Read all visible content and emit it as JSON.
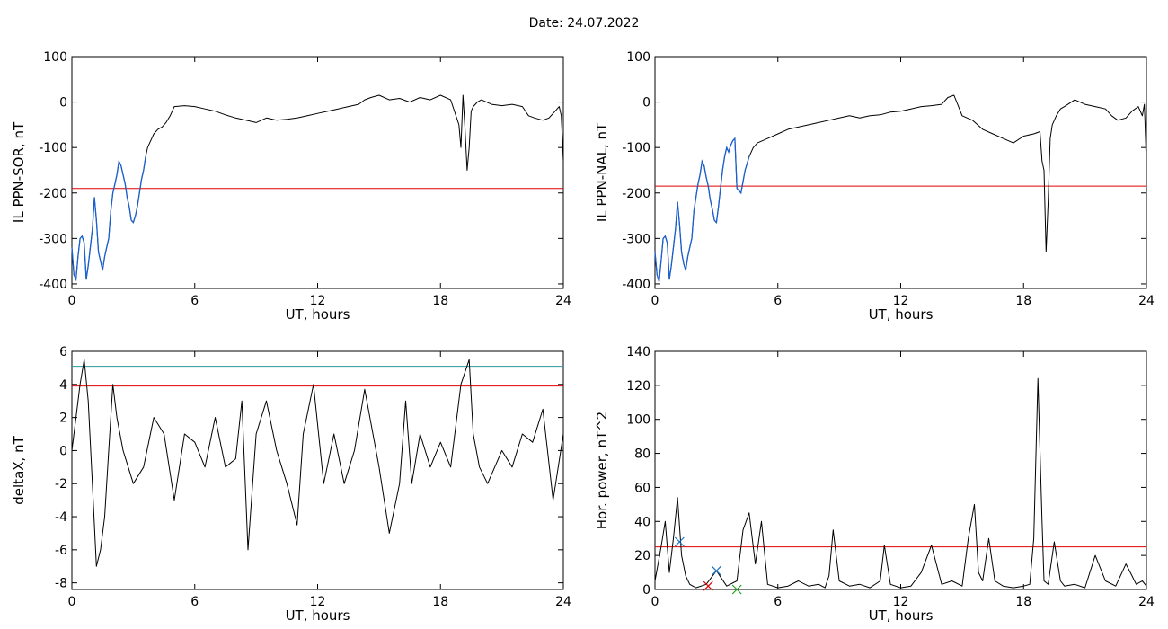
{
  "figure": {
    "title": "Date:  24.07.2022"
  },
  "colors": {
    "trace": "#000000",
    "threshold_red": "#e00000",
    "threshold_teal": "#2a9a9a",
    "highlight_blue": "#1a60d0",
    "marker_blue": "#1a70c0",
    "marker_red": "#d02020",
    "marker_green": "#20a020"
  },
  "chart_data": [
    {
      "id": "ppn-sor",
      "type": "line",
      "xlabel": "UT, hours",
      "ylabel": "IL PPN-SOR, nT",
      "xlim": [
        0,
        24
      ],
      "ylim": [
        -410,
        100
      ],
      "xticks": [
        0,
        6,
        12,
        18,
        24
      ],
      "yticks": [
        -400,
        -300,
        -200,
        -100,
        0,
        100
      ],
      "threshold": {
        "value": -190,
        "color": "red"
      },
      "series": [
        {
          "x": [
            0,
            0.1,
            0.2,
            0.3,
            0.4,
            0.5,
            0.6,
            0.7,
            0.8,
            0.9,
            1.0,
            1.1,
            1.2,
            1.3,
            1.4,
            1.5,
            1.6,
            1.7,
            1.8,
            1.9,
            2.0,
            2.1,
            2.2,
            2.3,
            2.4,
            2.5,
            2.6,
            2.7,
            2.8,
            2.9,
            3.0,
            3.1,
            3.2,
            3.3,
            3.4,
            3.5,
            3.6,
            3.7,
            3.8,
            3.9,
            4.0,
            4.2,
            4.4,
            4.6,
            4.8,
            5.0,
            5.5,
            6,
            6.5,
            7,
            7.5,
            8,
            8.5,
            9,
            9.5,
            10,
            10.5,
            11,
            11.5,
            12,
            12.5,
            13,
            13.5,
            14,
            14.3,
            14.6,
            15,
            15.5,
            16,
            16.5,
            17,
            17.5,
            18,
            18.5,
            18.9,
            19.0,
            19.1,
            19.2,
            19.3,
            19.4,
            19.5,
            19.6,
            19.8,
            20,
            20.5,
            21,
            21.5,
            22,
            22.3,
            22.6,
            23,
            23.3,
            23.6,
            23.8,
            23.9,
            24
          ],
          "y": [
            -320,
            -380,
            -390,
            -340,
            -300,
            -295,
            -310,
            -390,
            -360,
            -320,
            -280,
            -210,
            -260,
            -330,
            -350,
            -370,
            -340,
            -320,
            -300,
            -240,
            -200,
            -180,
            -160,
            -130,
            -140,
            -160,
            -180,
            -210,
            -230,
            -260,
            -265,
            -250,
            -230,
            -200,
            -170,
            -150,
            -120,
            -100,
            -90,
            -80,
            -70,
            -60,
            -55,
            -45,
            -30,
            -10,
            -8,
            -10,
            -15,
            -20,
            -28,
            -35,
            -40,
            -45,
            -35,
            -40,
            -38,
            -35,
            -30,
            -25,
            -20,
            -15,
            -10,
            -5,
            5,
            10,
            15,
            5,
            8,
            0,
            10,
            5,
            15,
            5,
            -50,
            -100,
            15,
            -60,
            -150,
            -100,
            -20,
            -10,
            0,
            5,
            -5,
            -8,
            -5,
            -10,
            -30,
            -35,
            -40,
            -35,
            -20,
            -10,
            -30,
            -130
          ]
        }
      ],
      "highlight_x_max": 3.6
    },
    {
      "id": "ppn-nal",
      "type": "line",
      "xlabel": "UT, hours",
      "ylabel": "IL PPN-NAL, nT",
      "xlim": [
        0,
        24
      ],
      "ylim": [
        -410,
        100
      ],
      "xticks": [
        0,
        6,
        12,
        18,
        24
      ],
      "yticks": [
        -400,
        -300,
        -200,
        -100,
        0,
        100
      ],
      "threshold": {
        "value": -185,
        "color": "red"
      },
      "series": [
        {
          "x": [
            0,
            0.1,
            0.2,
            0.3,
            0.4,
            0.5,
            0.6,
            0.7,
            0.8,
            0.9,
            1.0,
            1.1,
            1.2,
            1.3,
            1.4,
            1.5,
            1.6,
            1.7,
            1.8,
            1.9,
            2.0,
            2.1,
            2.2,
            2.3,
            2.4,
            2.5,
            2.6,
            2.7,
            2.8,
            2.9,
            3.0,
            3.1,
            3.2,
            3.3,
            3.4,
            3.5,
            3.6,
            3.7,
            3.8,
            3.9,
            4.0,
            4.2,
            4.4,
            4.6,
            4.8,
            5.0,
            5.5,
            6,
            6.5,
            7,
            7.5,
            8,
            8.5,
            9,
            9.5,
            10,
            10.5,
            11,
            11.5,
            12,
            12.5,
            13,
            13.5,
            14,
            14.3,
            14.6,
            15,
            15.5,
            16,
            16.5,
            17,
            17.5,
            18,
            18.5,
            18.8,
            18.9,
            19.0,
            19.1,
            19.2,
            19.3,
            19.4,
            19.6,
            19.8,
            20,
            20.5,
            21,
            21.5,
            22,
            22.3,
            22.6,
            23,
            23.3,
            23.6,
            23.8,
            23.9,
            24
          ],
          "y": [
            -330,
            -380,
            -395,
            -350,
            -300,
            -295,
            -310,
            -390,
            -360,
            -320,
            -280,
            -220,
            -270,
            -330,
            -355,
            -370,
            -340,
            -320,
            -300,
            -240,
            -210,
            -180,
            -160,
            -130,
            -140,
            -165,
            -185,
            -215,
            -235,
            -260,
            -265,
            -230,
            -190,
            -150,
            -120,
            -100,
            -110,
            -95,
            -85,
            -80,
            -190,
            -200,
            -150,
            -120,
            -100,
            -90,
            -80,
            -70,
            -60,
            -55,
            -50,
            -45,
            -40,
            -35,
            -30,
            -35,
            -30,
            -28,
            -22,
            -20,
            -15,
            -10,
            -8,
            -5,
            10,
            15,
            -30,
            -40,
            -60,
            -70,
            -80,
            -90,
            -75,
            -70,
            -65,
            -130,
            -150,
            -330,
            -220,
            -80,
            -50,
            -30,
            -15,
            -10,
            5,
            -5,
            -10,
            -15,
            -30,
            -40,
            -35,
            -20,
            -10,
            -30,
            -5,
            -140
          ]
        }
      ],
      "highlight_x_max": 4.6
    },
    {
      "id": "deltax",
      "type": "line",
      "xlabel": "UT, hours",
      "ylabel": "deltaX, nT",
      "xlim": [
        0,
        24
      ],
      "ylim": [
        -8.4,
        6
      ],
      "xticks": [
        0,
        6,
        12,
        18,
        24
      ],
      "yticks": [
        -8,
        -6,
        -4,
        -2,
        0,
        2,
        4,
        6
      ],
      "threshold": {
        "value": 3.9,
        "color": "red"
      },
      "threshold2": {
        "value": 5.1,
        "color": "teal"
      },
      "series": [
        {
          "x": [
            0,
            0.2,
            0.4,
            0.6,
            0.8,
            1.0,
            1.2,
            1.4,
            1.6,
            1.8,
            2.0,
            2.2,
            2.5,
            3.0,
            3.5,
            4.0,
            4.5,
            5.0,
            5.5,
            6.0,
            6.5,
            7.0,
            7.5,
            8.0,
            8.3,
            8.6,
            9.0,
            9.5,
            10.0,
            10.5,
            11.0,
            11.3,
            11.8,
            12.3,
            12.8,
            13.3,
            13.8,
            14.3,
            15.0,
            15.5,
            16.0,
            16.3,
            16.6,
            17.0,
            17.5,
            18.0,
            18.5,
            19.0,
            19.4,
            19.6,
            19.9,
            20.3,
            21.0,
            21.5,
            22.0,
            22.5,
            23.0,
            23.5,
            24
          ],
          "y": [
            0,
            2,
            4,
            5.5,
            3,
            -2,
            -7,
            -6,
            -4,
            0,
            4,
            2,
            0,
            -2,
            -1,
            2,
            1,
            -3,
            1,
            0.5,
            -1,
            2,
            -1,
            -0.5,
            3,
            -6,
            1,
            3,
            0,
            -2,
            -4.5,
            1,
            4,
            -2,
            1,
            -2,
            0,
            3.7,
            -1,
            -5,
            -2,
            3,
            -2,
            1,
            -1,
            0.5,
            -1,
            4,
            5.5,
            1,
            -1,
            -2,
            0,
            -1,
            1,
            0.5,
            2.5,
            -3,
            1
          ]
        }
      ]
    },
    {
      "id": "hor-power",
      "type": "line",
      "xlabel": "UT, hours",
      "ylabel": "Hor. power, nT^2",
      "xlim": [
        0,
        24
      ],
      "ylim": [
        0,
        140
      ],
      "xticks": [
        0,
        6,
        12,
        18,
        24
      ],
      "yticks": [
        0,
        20,
        40,
        60,
        80,
        100,
        120,
        140
      ],
      "threshold": {
        "value": 25,
        "color": "red"
      },
      "markers": [
        {
          "x": 1.2,
          "y": 28,
          "color": "blue"
        },
        {
          "x": 3.0,
          "y": 11,
          "color": "blue"
        },
        {
          "x": 2.6,
          "y": 2,
          "color": "red"
        },
        {
          "x": 4.0,
          "y": 0,
          "color": "green"
        }
      ],
      "series": [
        {
          "x": [
            0,
            0.3,
            0.5,
            0.7,
            0.9,
            1.1,
            1.3,
            1.5,
            1.7,
            2.0,
            2.5,
            3.0,
            3.5,
            4.0,
            4.3,
            4.6,
            4.9,
            5.2,
            5.5,
            6,
            6.5,
            7,
            7.5,
            8,
            8.3,
            8.5,
            8.7,
            9,
            9.5,
            10,
            10.5,
            11,
            11.2,
            11.5,
            12,
            12.5,
            13,
            13.5,
            14,
            14.5,
            15,
            15.3,
            15.6,
            15.8,
            16,
            16.3,
            16.6,
            17,
            17.5,
            18,
            18.3,
            18.5,
            18.7,
            18.9,
            19,
            19.2,
            19.5,
            19.8,
            20,
            20.5,
            21,
            21.5,
            22,
            22.5,
            23,
            23.3,
            23.5,
            23.8,
            24
          ],
          "y": [
            5,
            25,
            40,
            10,
            30,
            54,
            20,
            8,
            3,
            1,
            3,
            11,
            2,
            5,
            35,
            45,
            15,
            40,
            3,
            1,
            2,
            5,
            2,
            3,
            1,
            8,
            35,
            5,
            2,
            3,
            1,
            5,
            26,
            3,
            1,
            2,
            10,
            26,
            3,
            5,
            2,
            30,
            50,
            10,
            5,
            30,
            5,
            2,
            1,
            2,
            3,
            30,
            124,
            40,
            5,
            3,
            28,
            5,
            2,
            3,
            1,
            20,
            5,
            2,
            15,
            8,
            3,
            5,
            2
          ]
        }
      ]
    }
  ]
}
